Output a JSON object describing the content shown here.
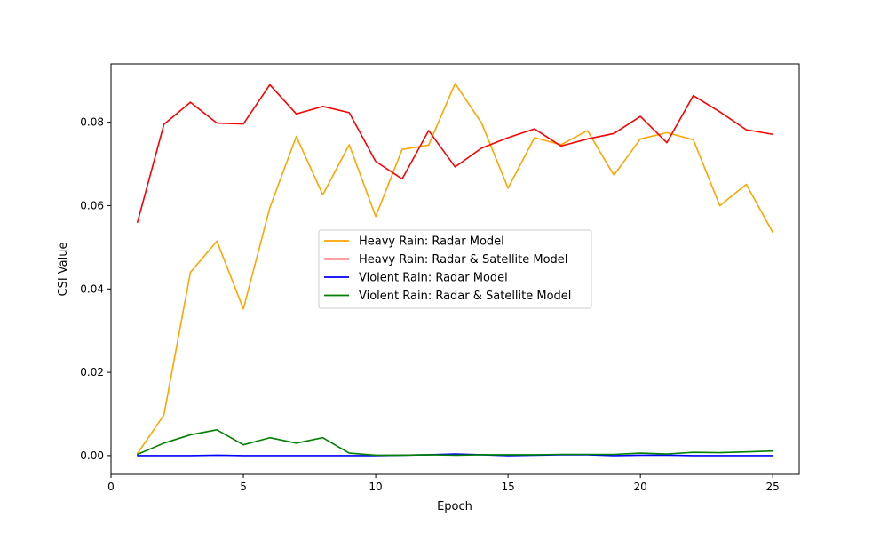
{
  "chart_data": {
    "type": "line",
    "title": "",
    "xlabel": "Epoch",
    "ylabel": "CSI Value",
    "xlim": [
      0,
      26
    ],
    "ylim": [
      -0.0045,
      0.094
    ],
    "xticks": [
      0,
      5,
      10,
      15,
      20,
      25
    ],
    "yticks": [
      0.0,
      0.02,
      0.04,
      0.06,
      0.08
    ],
    "ytick_labels": [
      "0.00",
      "0.02",
      "0.04",
      "0.06",
      "0.08"
    ],
    "grid": false,
    "legend_position": "center",
    "x": [
      1,
      2,
      3,
      4,
      5,
      6,
      7,
      8,
      9,
      10,
      11,
      12,
      13,
      14,
      15,
      16,
      17,
      18,
      19,
      20,
      21,
      22,
      23,
      24,
      25
    ],
    "series": [
      {
        "name": "Heavy Rain: Radar Model",
        "color": "#ffa500",
        "values": [
          0.0005,
          0.0098,
          0.044,
          0.0515,
          0.0352,
          0.0595,
          0.0766,
          0.0626,
          0.0746,
          0.0574,
          0.0735,
          0.0745,
          0.0893,
          0.0798,
          0.0642,
          0.0763,
          0.0746,
          0.078,
          0.0673,
          0.076,
          0.0775,
          0.0758,
          0.06,
          0.0651,
          0.0536
        ]
      },
      {
        "name": "Heavy Rain: Radar & Satellite Model",
        "color": "#ff0000",
        "values": [
          0.056,
          0.0795,
          0.0848,
          0.0798,
          0.0796,
          0.089,
          0.082,
          0.0838,
          0.0823,
          0.0706,
          0.0664,
          0.078,
          0.0693,
          0.0738,
          0.0763,
          0.0784,
          0.0743,
          0.076,
          0.0773,
          0.0814,
          0.0751,
          0.0864,
          0.0825,
          0.0782,
          0.0771
        ]
      },
      {
        "name": "Violent Rain: Radar Model",
        "color": "#0000ff",
        "values": [
          0.0,
          0.0,
          0.0,
          0.0001,
          0.0,
          0.0,
          0.0,
          0.0,
          0.0,
          0.0,
          0.0001,
          0.0002,
          0.0004,
          0.0002,
          0.0,
          0.0001,
          0.0002,
          0.0002,
          0.0,
          0.0001,
          0.0001,
          0.0,
          0.0,
          0.0,
          0.0
        ]
      },
      {
        "name": "Violent Rain: Radar & Satellite Model",
        "color": "#008000",
        "values": [
          0.0003,
          0.003,
          0.005,
          0.0062,
          0.0026,
          0.0043,
          0.003,
          0.0043,
          0.0006,
          0.0001,
          0.0001,
          0.0002,
          0.0001,
          0.0002,
          0.0002,
          0.0002,
          0.0003,
          0.0003,
          0.0003,
          0.0006,
          0.0004,
          0.0008,
          0.0007,
          0.0009,
          0.0011
        ]
      }
    ]
  }
}
